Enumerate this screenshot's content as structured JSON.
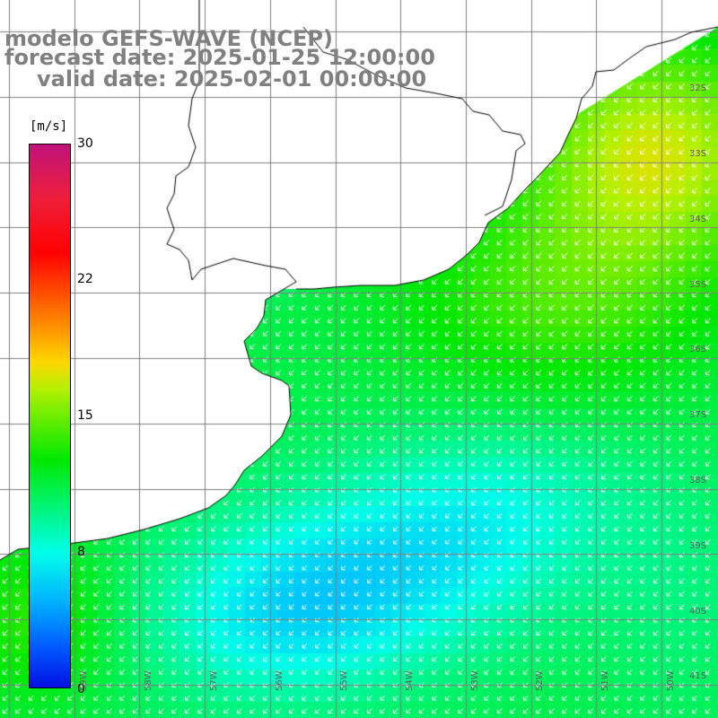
{
  "title": {
    "line1": "modelo GEFS-WAVE (NCEP)",
    "line2": "forecast date: 2025-01-25 12:00:00",
    "line3": "valid date: 2025-02-01 00:00:00"
  },
  "colorbar": {
    "units": "[m/s]",
    "min": 0,
    "max": 30,
    "ticks": [
      {
        "label": "30",
        "value": 30
      },
      {
        "label": "22",
        "value": 22
      },
      {
        "label": "15",
        "value": 15
      },
      {
        "label": "8",
        "value": 8
      },
      {
        "label": "0",
        "value": 0
      }
    ]
  },
  "map": {
    "lat_labels": [
      "32S",
      "33S",
      "34S",
      "35S",
      "36S",
      "37S",
      "38S",
      "39S",
      "40S",
      "41S"
    ],
    "lon_labels": [
      "59W",
      "58W",
      "57W",
      "56W",
      "55W",
      "54W",
      "53W",
      "52W",
      "51W",
      "50W"
    ],
    "colors": {
      "land": "#ffffff",
      "coast": "#000000",
      "grid": "#808080",
      "arrow": "#ffffff"
    }
  }
}
